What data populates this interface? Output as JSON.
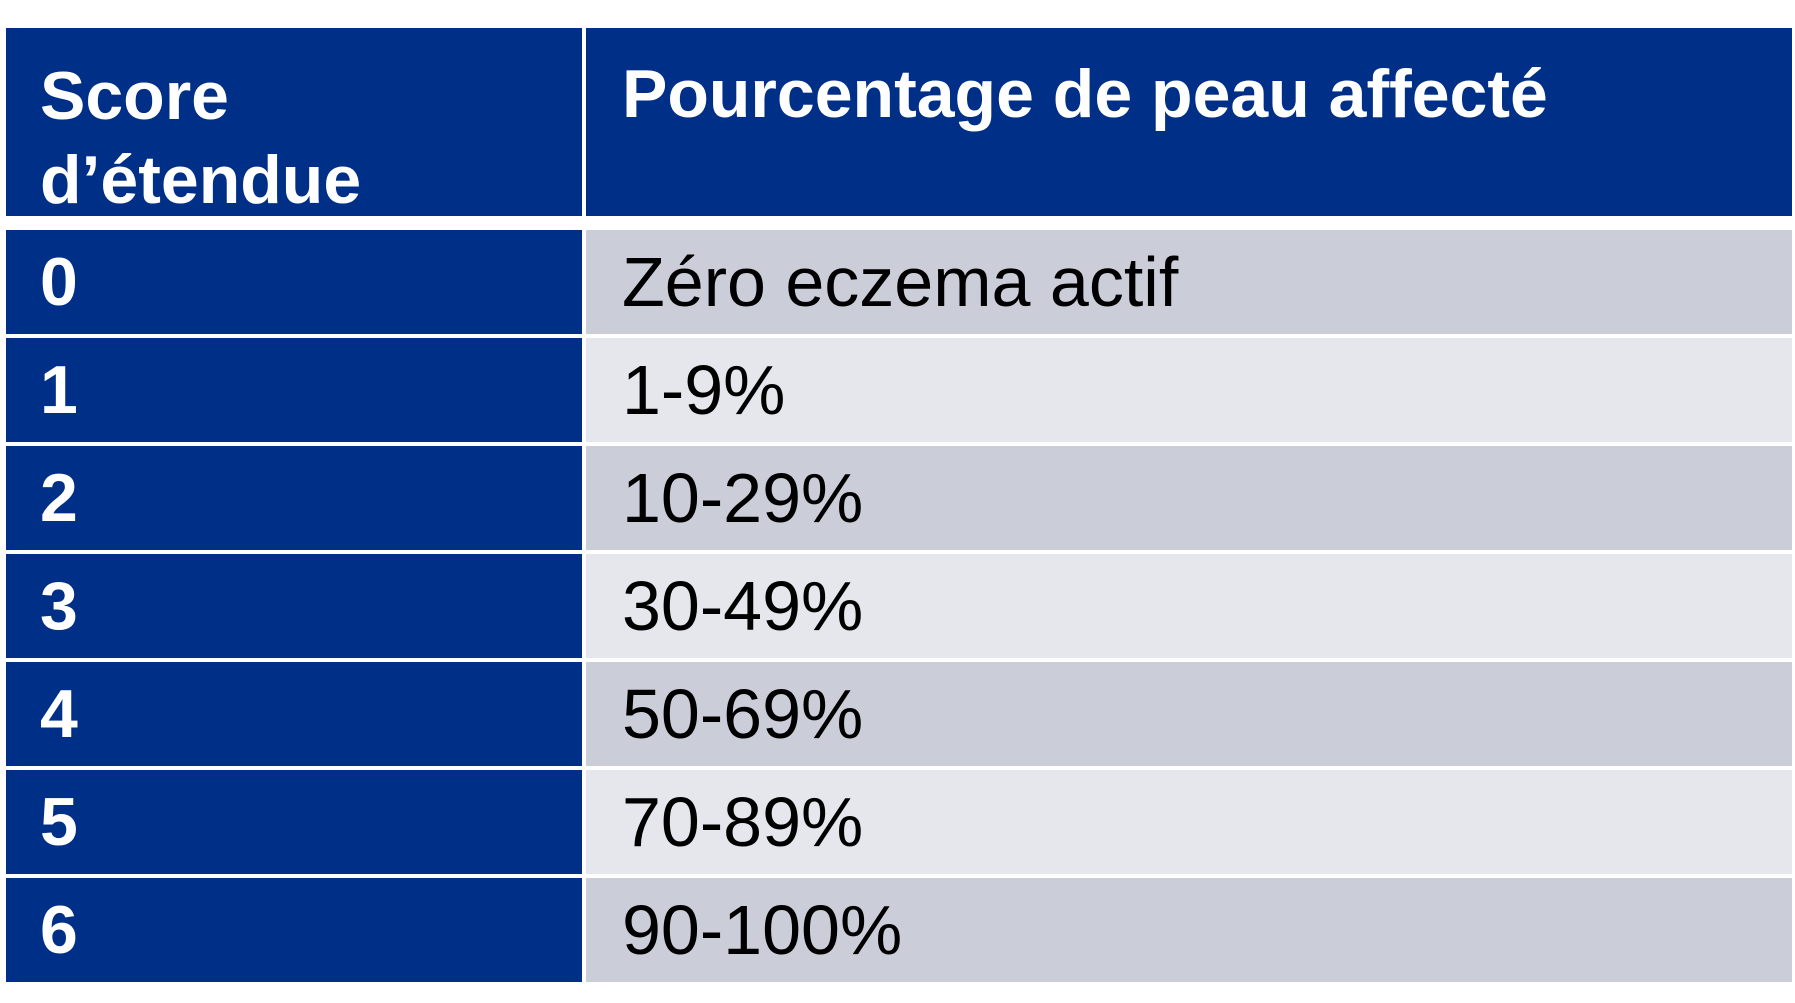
{
  "table": {
    "header": {
      "col1_line1": "Score",
      "col1_line2": "d’étendue",
      "col2": "Pourcentage de peau affecté"
    },
    "rows": [
      {
        "score": "0",
        "percentage": "Zéro eczema actif"
      },
      {
        "score": "1",
        "percentage": "1-9%"
      },
      {
        "score": "2",
        "percentage": "10-29%"
      },
      {
        "score": "3",
        "percentage": "30-49%"
      },
      {
        "score": "4",
        "percentage": "50-69%"
      },
      {
        "score": "5",
        "percentage": "70-89%"
      },
      {
        "score": "6",
        "percentage": "90-100%"
      }
    ],
    "colors": {
      "header_blue": "#002f87",
      "row_dark": "#cbcdd8",
      "row_light": "#e6e7ed"
    }
  }
}
